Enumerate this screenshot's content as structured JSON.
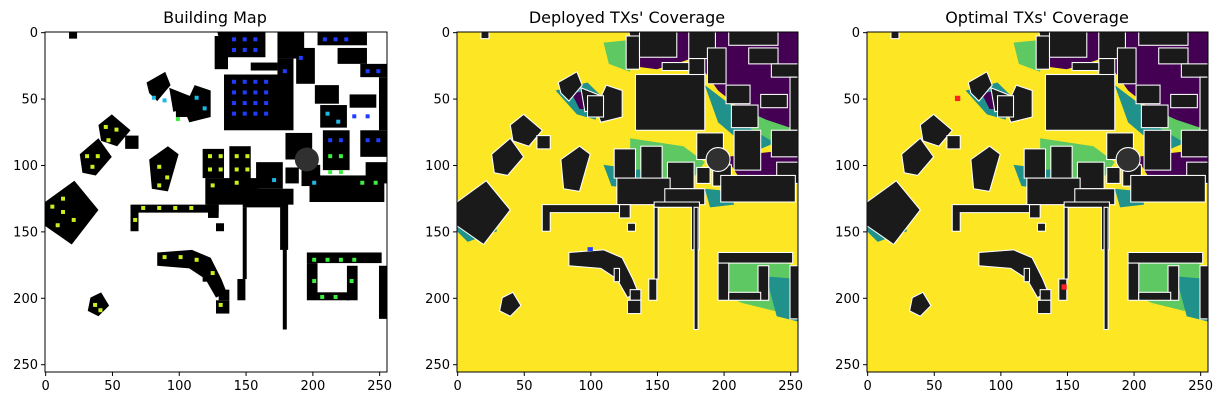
{
  "chart_data": [
    {
      "type": "heatmap",
      "title": "Building Map",
      "xlim": [
        0,
        256
      ],
      "ylim": [
        256,
        0
      ],
      "xticks": [
        0,
        50,
        100,
        150,
        200,
        250
      ],
      "yticks": [
        0,
        50,
        100,
        150,
        200,
        250
      ],
      "colors": {
        "background": "#ffffff",
        "building": "#000000"
      }
    },
    {
      "type": "heatmap",
      "title": "Deployed TXs' Coverage",
      "xlim": [
        0,
        256
      ],
      "ylim": [
        256,
        0
      ],
      "xticks": [
        0,
        50,
        100,
        150,
        200,
        250
      ],
      "yticks": [
        0,
        50,
        100,
        150,
        200,
        250
      ],
      "colors": {
        "covered": "#fde725",
        "partial": "#5ec962",
        "weak": "#21918c",
        "uncovered": "#440154",
        "building": "#1a1a1a"
      }
    },
    {
      "type": "heatmap",
      "title": "Optimal TXs' Coverage",
      "xlim": [
        0,
        256
      ],
      "ylim": [
        256,
        0
      ],
      "xticks": [
        0,
        50,
        100,
        150,
        200,
        250
      ],
      "yticks": [
        0,
        50,
        100,
        150,
        200,
        250
      ],
      "colors": {
        "covered": "#fde725",
        "partial": "#5ec962",
        "weak": "#21918c",
        "uncovered": "#440154",
        "building": "#1a1a1a",
        "tx": "#ff2020"
      }
    }
  ]
}
